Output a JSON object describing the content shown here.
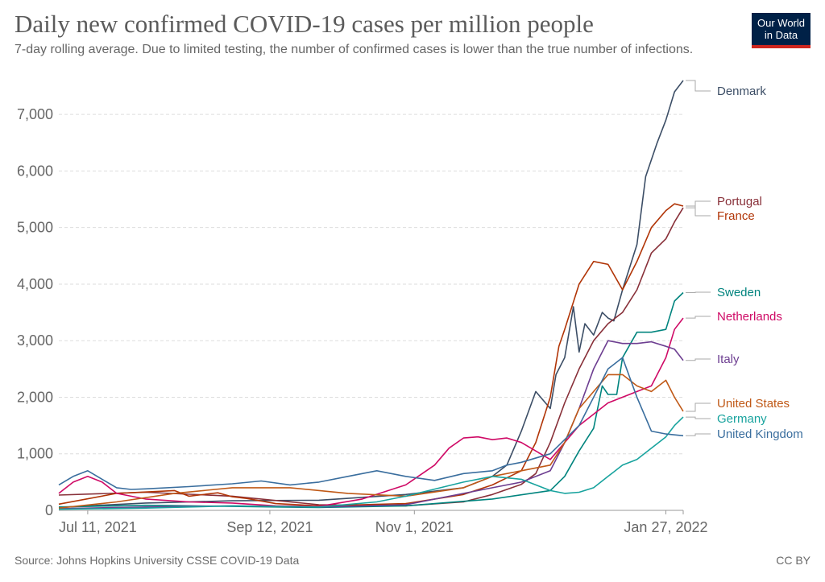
{
  "header": {
    "title": "Daily new confirmed COVID-19 cases per million people",
    "subtitle": "7-day rolling average. Due to limited testing, the number of confirmed cases is lower than the true number of infections.",
    "logo_line1": "Our World",
    "logo_line2": "in Data"
  },
  "footer": {
    "source": "Source: Johns Hopkins University CSSE COVID-19 Data",
    "license": "CC BY"
  },
  "chart_data": {
    "type": "line",
    "title": "Daily new confirmed COVID-19 cases per million people",
    "subtitle": "7-day rolling average. Due to limited testing, the number of confirmed cases is lower than the true number of infections.",
    "x_unit": "days since Jul 1, 2021",
    "xlim": [
      0,
      216
    ],
    "ylim": [
      0,
      7600
    ],
    "y_ticks": [
      0,
      1000,
      2000,
      3000,
      4000,
      5000,
      6000,
      7000
    ],
    "y_tick_labels": [
      "0",
      "1,000",
      "2,000",
      "3,000",
      "4,000",
      "5,000",
      "6,000",
      "7,000"
    ],
    "x_ticks": [
      10,
      73,
      123,
      210
    ],
    "x_tick_labels": [
      "Jul 11, 2021",
      "Sep 12, 2021",
      "Nov 1, 2021",
      "Jan 27, 2022"
    ],
    "grid": true,
    "legend": "line-end labels on right",
    "series": [
      {
        "name": "Denmark",
        "color": "#3c4e66",
        "x": [
          0,
          10,
          30,
          60,
          90,
          120,
          140,
          150,
          155,
          160,
          165,
          170,
          172,
          175,
          178,
          180,
          182,
          185,
          188,
          190,
          192,
          195,
          200,
          203,
          207,
          210,
          213,
          216
        ],
        "y": [
          50,
          80,
          130,
          170,
          180,
          280,
          400,
          600,
          800,
          1400,
          2100,
          1800,
          2400,
          2700,
          3600,
          2800,
          3300,
          3100,
          3500,
          3400,
          3350,
          3900,
          4700,
          5900,
          6500,
          6900,
          7400,
          7600
        ]
      },
      {
        "name": "Portugal",
        "color": "#883039",
        "x": [
          0,
          30,
          60,
          90,
          120,
          140,
          150,
          160,
          165,
          170,
          175,
          180,
          185,
          190,
          195,
          200,
          205,
          210,
          213,
          216
        ],
        "y": [
          270,
          320,
          250,
          100,
          80,
          150,
          280,
          460,
          650,
          1200,
          1900,
          2500,
          3000,
          3300,
          3500,
          3900,
          4550,
          4800,
          5100,
          5350
        ]
      },
      {
        "name": "France",
        "color": "#b13507",
        "x": [
          0,
          20,
          40,
          45,
          55,
          60,
          65,
          75,
          90,
          120,
          140,
          150,
          160,
          165,
          170,
          173,
          175,
          180,
          185,
          190,
          195,
          200,
          205,
          210,
          213,
          216
        ],
        "y": [
          110,
          300,
          350,
          250,
          310,
          240,
          210,
          120,
          80,
          120,
          280,
          450,
          700,
          1200,
          2000,
          2900,
          3200,
          4000,
          4400,
          4350,
          3900,
          4400,
          5000,
          5300,
          5420,
          5380
        ]
      },
      {
        "name": "Sweden",
        "color": "#00847e",
        "x": [
          0,
          30,
          60,
          90,
          120,
          150,
          170,
          175,
          180,
          185,
          188,
          190,
          193,
          195,
          200,
          205,
          210,
          213,
          216
        ],
        "y": [
          60,
          90,
          70,
          50,
          80,
          200,
          350,
          600,
          1050,
          1450,
          2200,
          2050,
          2050,
          2700,
          3150,
          3150,
          3200,
          3700,
          3850
        ]
      },
      {
        "name": "Netherlands",
        "color": "#cf0a66",
        "x": [
          0,
          5,
          10,
          15,
          20,
          30,
          45,
          60,
          75,
          90,
          105,
          120,
          130,
          135,
          140,
          145,
          150,
          155,
          160,
          170,
          180,
          190,
          200,
          205,
          210,
          213,
          216
        ],
        "y": [
          300,
          500,
          600,
          500,
          300,
          200,
          150,
          130,
          80,
          70,
          200,
          450,
          800,
          1100,
          1280,
          1300,
          1250,
          1280,
          1200,
          900,
          1500,
          1900,
          2100,
          2200,
          2700,
          3200,
          3400
        ]
      },
      {
        "name": "Italy",
        "color": "#6d3e91",
        "x": [
          0,
          30,
          60,
          90,
          120,
          150,
          160,
          170,
          175,
          180,
          185,
          188,
          190,
          195,
          200,
          205,
          210,
          213,
          216
        ],
        "y": [
          30,
          60,
          80,
          60,
          100,
          400,
          500,
          700,
          1200,
          1800,
          2500,
          2800,
          3000,
          2950,
          2950,
          2980,
          2900,
          2850,
          2650
        ]
      },
      {
        "name": "United States",
        "color": "#c05917",
        "x": [
          0,
          20,
          40,
          60,
          80,
          100,
          120,
          140,
          150,
          160,
          170,
          175,
          180,
          185,
          190,
          195,
          200,
          205,
          210,
          213,
          216
        ],
        "y": [
          40,
          150,
          300,
          400,
          400,
          300,
          250,
          400,
          600,
          700,
          800,
          1200,
          1800,
          2100,
          2400,
          2400,
          2200,
          2100,
          2300,
          2000,
          1750
        ]
      },
      {
        "name": "Germany",
        "color": "#18a39e",
        "x": [
          0,
          30,
          60,
          90,
          110,
          120,
          140,
          150,
          160,
          170,
          175,
          180,
          185,
          190,
          195,
          200,
          205,
          210,
          213,
          216
        ],
        "y": [
          20,
          40,
          80,
          60,
          150,
          250,
          500,
          600,
          550,
          350,
          300,
          320,
          400,
          600,
          800,
          900,
          1100,
          1300,
          1500,
          1650
        ]
      },
      {
        "name": "United Kingdom",
        "color": "#3a6e9e",
        "x": [
          0,
          5,
          10,
          15,
          20,
          25,
          30,
          45,
          60,
          70,
          80,
          90,
          100,
          110,
          120,
          130,
          140,
          150,
          155,
          160,
          170,
          180,
          185,
          190,
          195,
          200,
          205,
          210,
          216
        ],
        "y": [
          450,
          600,
          700,
          550,
          400,
          370,
          380,
          420,
          470,
          520,
          450,
          500,
          600,
          700,
          600,
          530,
          650,
          700,
          800,
          850,
          1000,
          1500,
          2000,
          2500,
          2700,
          2000,
          1400,
          1350,
          1320
        ]
      }
    ]
  }
}
